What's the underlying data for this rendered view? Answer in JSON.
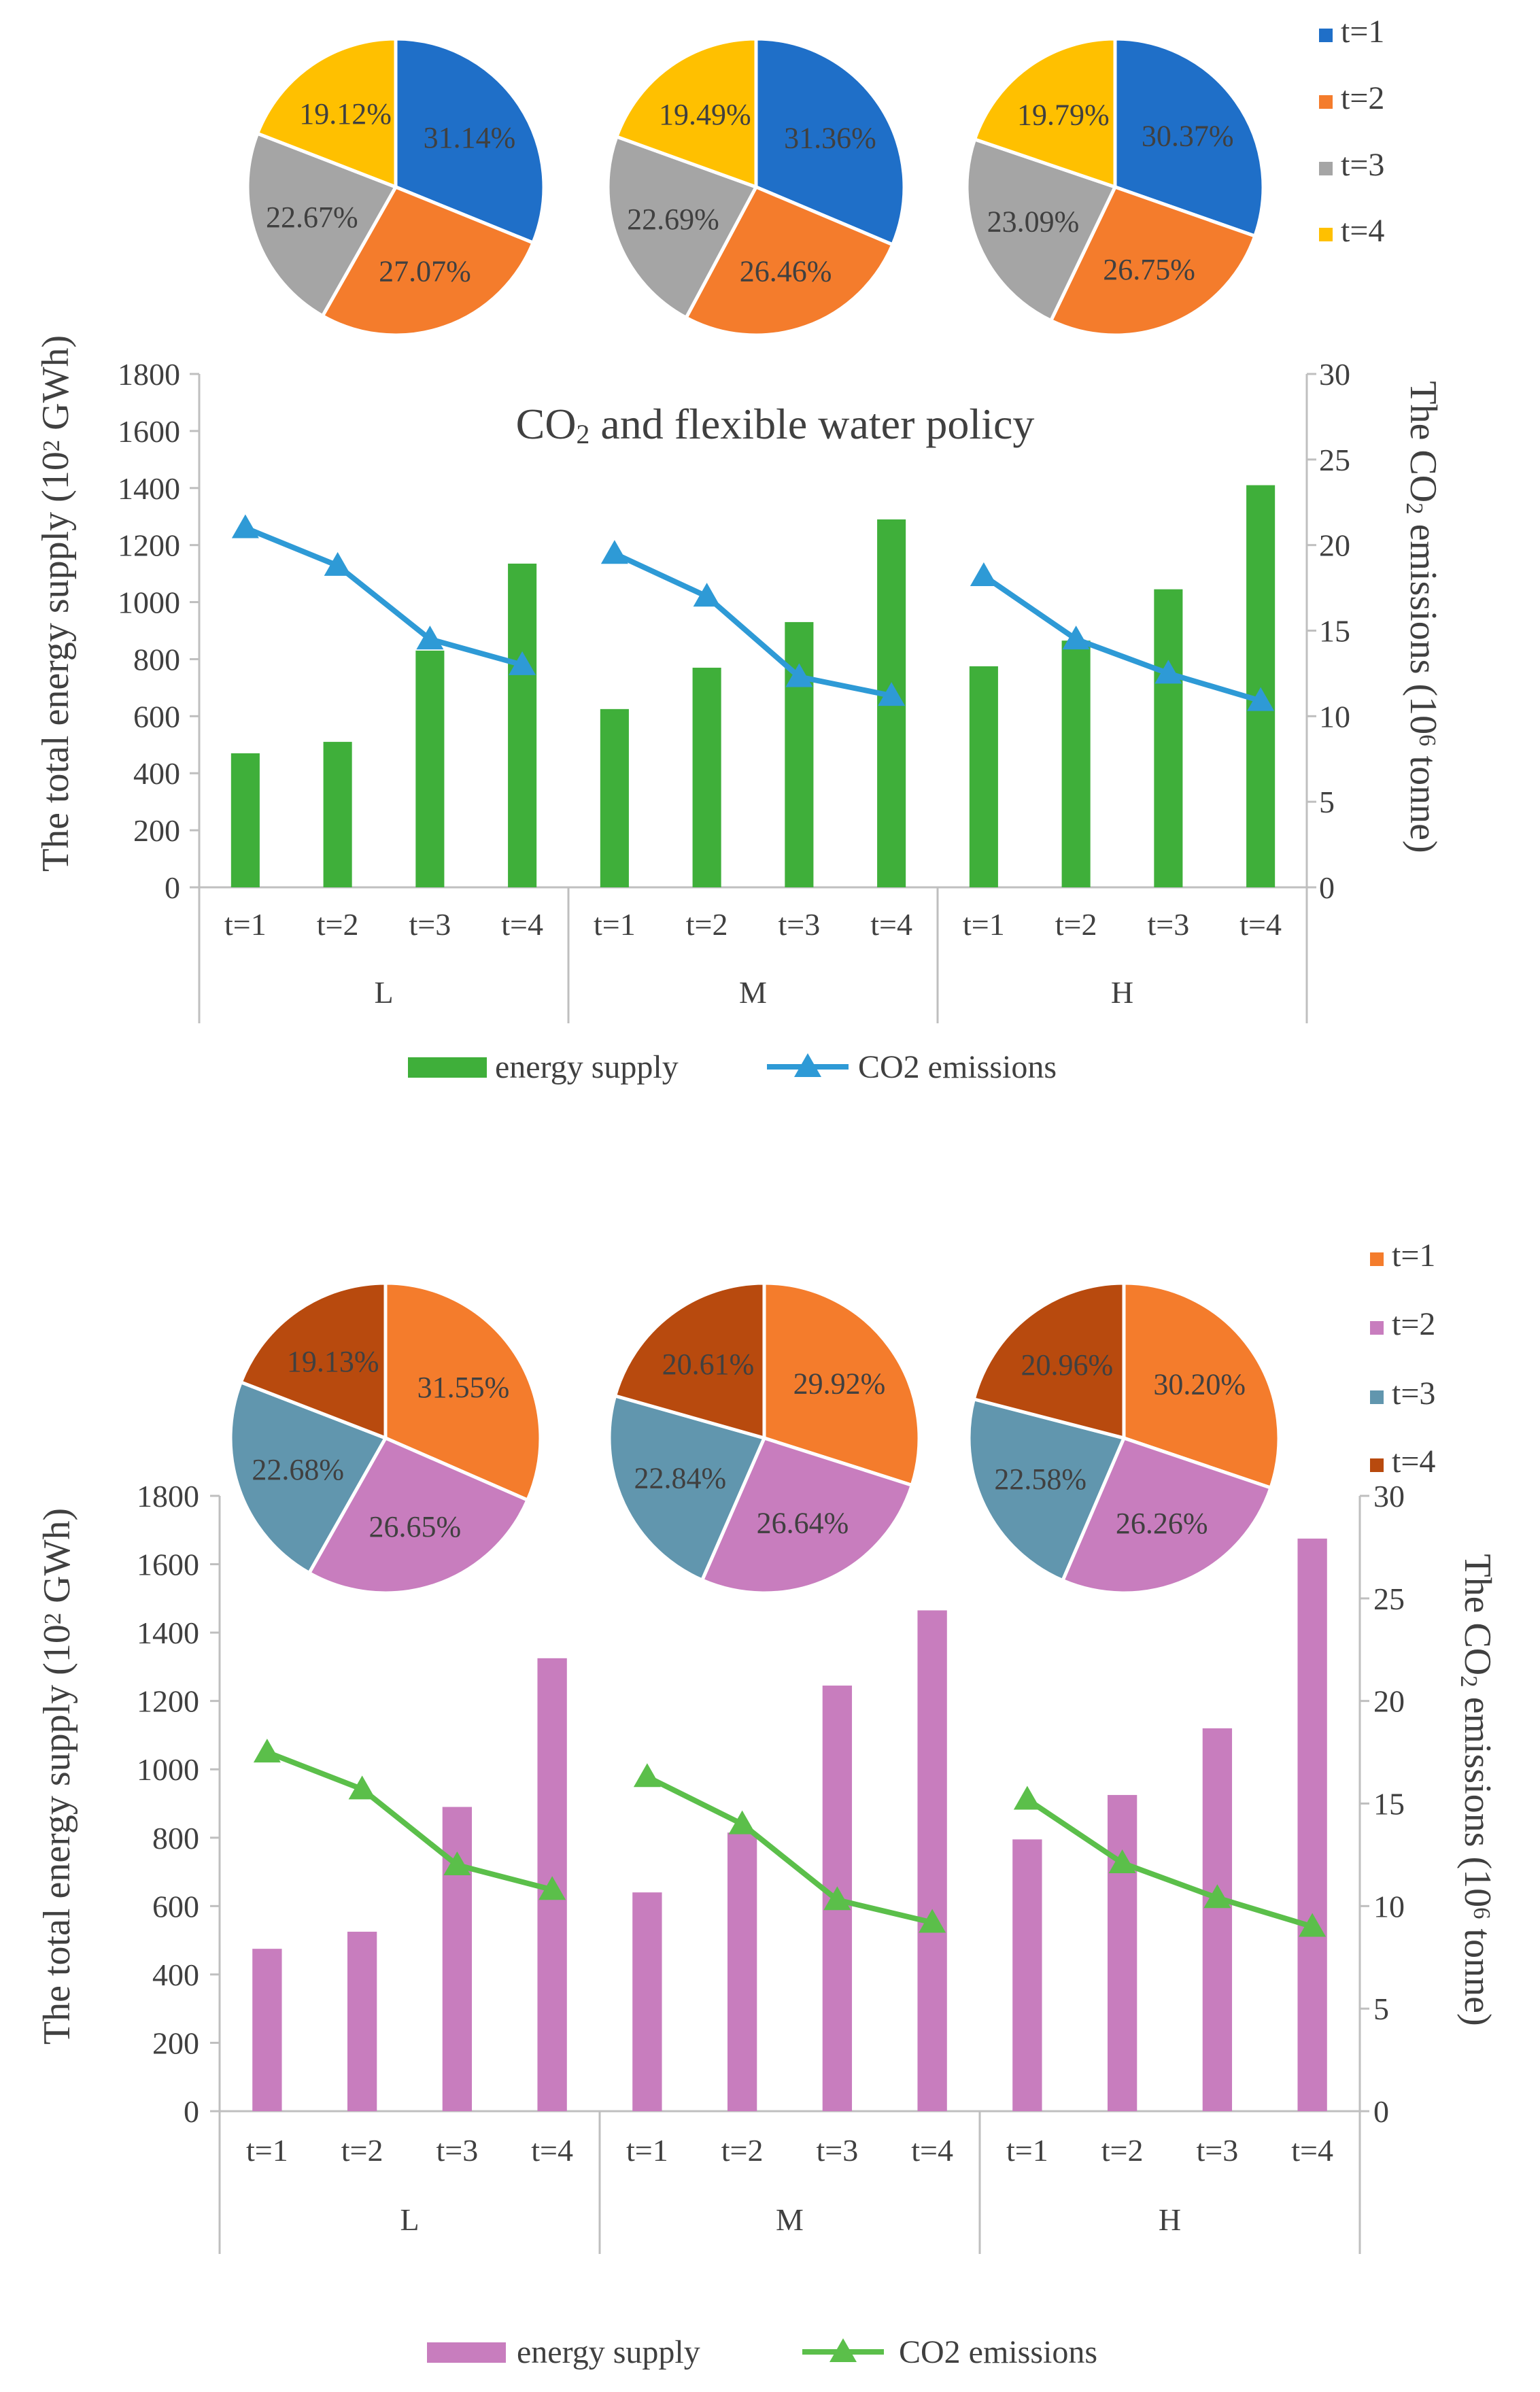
{
  "chart_data": [
    {
      "type": "bar",
      "title": "CO₂ and flexible water policy",
      "groups": [
        "L",
        "M",
        "H"
      ],
      "categories": [
        "t=1",
        "t=2",
        "t=3",
        "t=4",
        "t=1",
        "t=2",
        "t=3",
        "t=4",
        "t=1",
        "t=2",
        "t=3",
        "t=4"
      ],
      "ylabel": "The total energy supply (10² GWh)",
      "y2label": "The CO₂ emissions (10⁶ tonne)",
      "ylim": [
        0,
        1800
      ],
      "y2lim": [
        0,
        30
      ],
      "yticks": [
        "0",
        "200",
        "400",
        "600",
        "800",
        "1000",
        "1200",
        "1400",
        "1600",
        "1800"
      ],
      "y2ticks": [
        "0",
        "5",
        "10",
        "15",
        "20",
        "25",
        "30"
      ],
      "series": [
        {
          "name": "energy supply",
          "kind": "bar",
          "axis": "left",
          "color": "#3FAF3A",
          "values": [
            470,
            510,
            830,
            1135,
            625,
            770,
            930,
            1290,
            775,
            865,
            1045,
            1410
          ]
        },
        {
          "name": "CO2 emissions",
          "kind": "line",
          "axis": "right",
          "color": "#2E9AD6",
          "values": [
            21.0,
            18.8,
            14.5,
            13.0,
            19.5,
            17.0,
            12.3,
            11.2,
            18.2,
            14.5,
            12.5,
            10.9
          ]
        }
      ],
      "pies": [
        {
          "group": "L",
          "values": [
            31.14,
            27.07,
            22.67,
            19.12
          ],
          "labels": [
            "31.14%",
            "27.07%",
            "22.67%",
            "19.12%"
          ]
        },
        {
          "group": "M",
          "values": [
            31.36,
            26.46,
            22.69,
            19.49
          ],
          "labels": [
            "31.36%",
            "26.46%",
            "22.69%",
            "19.49%"
          ]
        },
        {
          "group": "H",
          "values": [
            30.37,
            26.75,
            23.09,
            19.79
          ],
          "labels": [
            "30.37%",
            "26.75%",
            "23.09%",
            "19.79%"
          ]
        }
      ],
      "pie_legend": [
        "t=1",
        "t=2",
        "t=3",
        "t=4"
      ],
      "pie_colors": [
        "#1F6FC8",
        "#F47C2C",
        "#A5A5A5",
        "#FFC000"
      ]
    },
    {
      "type": "bar",
      "title": "",
      "groups": [
        "L",
        "M",
        "H"
      ],
      "categories": [
        "t=1",
        "t=2",
        "t=3",
        "t=4",
        "t=1",
        "t=2",
        "t=3",
        "t=4",
        "t=1",
        "t=2",
        "t=3",
        "t=4"
      ],
      "ylabel": "The total energy supply (10² GWh)",
      "y2label": "The CO₂ emissions (10⁶ tonne)",
      "ylim": [
        0,
        1800
      ],
      "y2lim": [
        0,
        30
      ],
      "yticks": [
        "0",
        "200",
        "400",
        "600",
        "800",
        "1000",
        "1200",
        "1400",
        "1600",
        "1800"
      ],
      "y2ticks": [
        "0",
        "5",
        "10",
        "15",
        "20",
        "25",
        "30"
      ],
      "series": [
        {
          "name": "energy supply",
          "kind": "bar",
          "axis": "left",
          "color": "#C87DBE",
          "values": [
            475,
            525,
            890,
            1325,
            640,
            815,
            1245,
            1465,
            795,
            925,
            1120,
            1675
          ]
        },
        {
          "name": "CO2 emissions",
          "kind": "line",
          "axis": "right",
          "color": "#5BBF4A",
          "values": [
            17.5,
            15.7,
            12.0,
            10.8,
            16.3,
            14.0,
            10.3,
            9.2,
            15.2,
            12.1,
            10.4,
            9.0
          ]
        }
      ],
      "pies": [
        {
          "group": "L",
          "values": [
            31.55,
            26.65,
            22.68,
            19.13
          ],
          "labels": [
            "31.55%",
            "26.65%",
            "22.68%",
            "19.13%"
          ]
        },
        {
          "group": "M",
          "values": [
            29.92,
            26.64,
            22.84,
            20.61
          ],
          "labels": [
            "29.92%",
            "26.64%",
            "22.84%",
            "20.61%"
          ]
        },
        {
          "group": "H",
          "values": [
            30.2,
            26.26,
            22.58,
            20.96
          ],
          "labels": [
            "30.20%",
            "26.26%",
            "22.58%",
            "20.96%"
          ]
        }
      ],
      "pie_legend": [
        "t=1",
        "t=2",
        "t=3",
        "t=4"
      ],
      "pie_colors": [
        "#F47C2C",
        "#C87DBE",
        "#6196AE",
        "#B84A0E"
      ]
    }
  ]
}
